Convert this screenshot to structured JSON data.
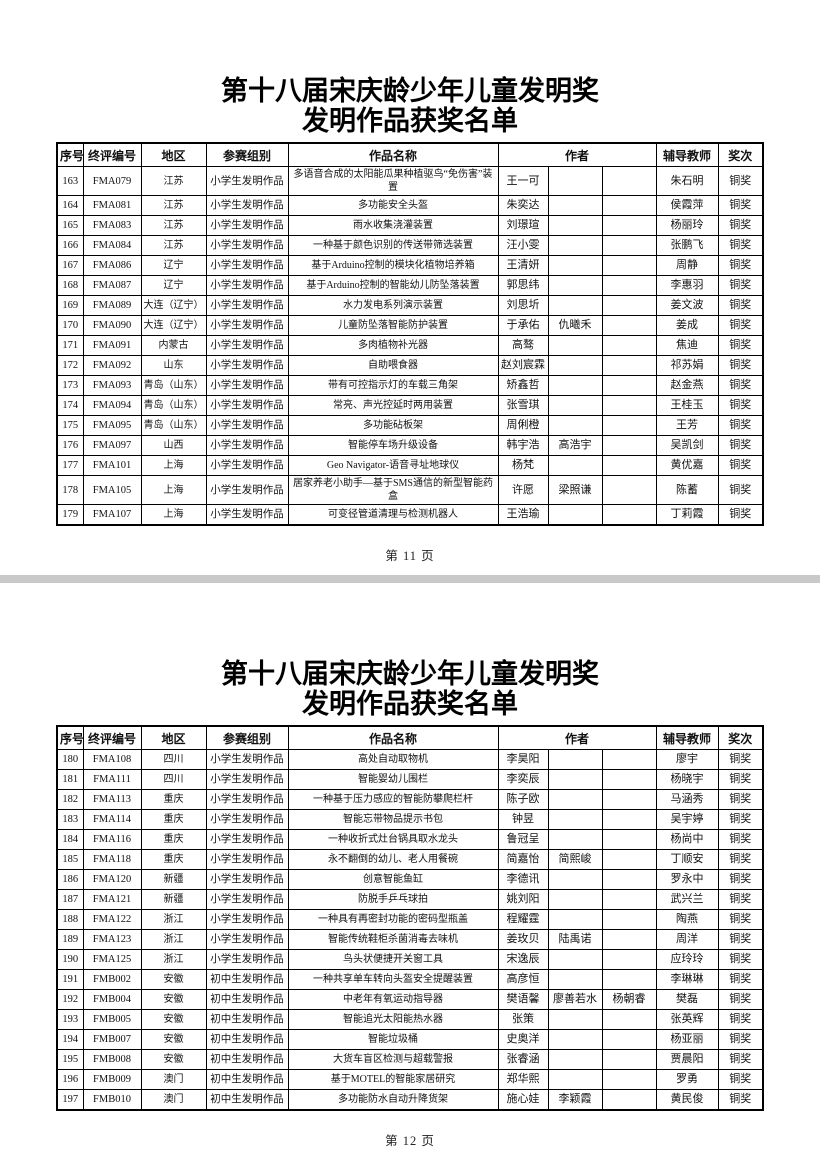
{
  "colors": {
    "page_bg": "#ffffff",
    "divider": "#c9c9c9",
    "border": "#000000",
    "text": "#111111"
  },
  "table": {
    "headers": [
      {
        "label": "序号",
        "colspan": 1
      },
      {
        "label": "终评编号",
        "colspan": 1
      },
      {
        "label": "地区",
        "colspan": 1
      },
      {
        "label": "参赛组别",
        "colspan": 1
      },
      {
        "label": "作品名称",
        "colspan": 1
      },
      {
        "label": "作者",
        "colspan": 3
      },
      {
        "label": "辅导教师",
        "colspan": 1
      },
      {
        "label": "奖次",
        "colspan": 1
      }
    ]
  },
  "pages": [
    {
      "title_line1": "第十八届宋庆龄少年儿童发明奖",
      "title_line2": "发明作品获奖名单",
      "footer": "第 11 页",
      "rows": [
        {
          "no": "163",
          "code": "FMA079",
          "region": "江苏",
          "group": "小学生发明作品",
          "work": "多语音合成的太阳能瓜果种植驱鸟“免伤害”装置",
          "authors": [
            "王一可",
            "",
            ""
          ],
          "teacher": "朱石明",
          "award": "铜奖"
        },
        {
          "no": "164",
          "code": "FMA081",
          "region": "江苏",
          "group": "小学生发明作品",
          "work": "多功能安全头盔",
          "authors": [
            "朱奕达",
            "",
            ""
          ],
          "teacher": "侯霞萍",
          "award": "铜奖"
        },
        {
          "no": "165",
          "code": "FMA083",
          "region": "江苏",
          "group": "小学生发明作品",
          "work": "雨水收集浇灌装置",
          "authors": [
            "刘璟瑄",
            "",
            ""
          ],
          "teacher": "杨丽玲",
          "award": "铜奖"
        },
        {
          "no": "166",
          "code": "FMA084",
          "region": "江苏",
          "group": "小学生发明作品",
          "work": "一种基于颜色识别的传送带筛选装置",
          "authors": [
            "汪小雯",
            "",
            ""
          ],
          "teacher": "张鹏飞",
          "award": "铜奖"
        },
        {
          "no": "167",
          "code": "FMA086",
          "region": "辽宁",
          "group": "小学生发明作品",
          "work": "基于Arduino控制的模块化植物培养箱",
          "authors": [
            "王清妍",
            "",
            ""
          ],
          "teacher": "周静",
          "award": "铜奖"
        },
        {
          "no": "168",
          "code": "FMA087",
          "region": "辽宁",
          "group": "小学生发明作品",
          "work": "基于Arduino控制的智能幼儿防坠落装置",
          "authors": [
            "郭思纬",
            "",
            ""
          ],
          "teacher": "李惠羽",
          "award": "铜奖"
        },
        {
          "no": "169",
          "code": "FMA089",
          "region": "大连（辽宁）",
          "group": "小学生发明作品",
          "work": "水力发电系列演示装置",
          "authors": [
            "刘思圻",
            "",
            ""
          ],
          "teacher": "姜文波",
          "award": "铜奖"
        },
        {
          "no": "170",
          "code": "FMA090",
          "region": "大连（辽宁）",
          "group": "小学生发明作品",
          "work": "儿童防坠落智能防护装置",
          "authors": [
            "于承佑",
            "仇曦禾",
            ""
          ],
          "teacher": "姜成",
          "award": "铜奖"
        },
        {
          "no": "171",
          "code": "FMA091",
          "region": "内蒙古",
          "group": "小学生发明作品",
          "work": "多肉植物补光器",
          "authors": [
            "高骜",
            "",
            ""
          ],
          "teacher": "焦迪",
          "award": "铜奖"
        },
        {
          "no": "172",
          "code": "FMA092",
          "region": "山东",
          "group": "小学生发明作品",
          "work": "自助喂食器",
          "authors": [
            "赵刘宸霖",
            "",
            ""
          ],
          "teacher": "祁苏娟",
          "award": "铜奖"
        },
        {
          "no": "173",
          "code": "FMA093",
          "region": "青岛（山东）",
          "group": "小学生发明作品",
          "work": "带有可控指示灯的车载三角架",
          "authors": [
            "矫鑫哲",
            "",
            ""
          ],
          "teacher": "赵金燕",
          "award": "铜奖"
        },
        {
          "no": "174",
          "code": "FMA094",
          "region": "青岛（山东）",
          "group": "小学生发明作品",
          "work": "常亮、声光控延时两用装置",
          "authors": [
            "张雪琪",
            "",
            ""
          ],
          "teacher": "王桂玉",
          "award": "铜奖"
        },
        {
          "no": "175",
          "code": "FMA095",
          "region": "青岛（山东）",
          "group": "小学生发明作品",
          "work": "多功能砧板架",
          "authors": [
            "周俐橙",
            "",
            ""
          ],
          "teacher": "王芳",
          "award": "铜奖"
        },
        {
          "no": "176",
          "code": "FMA097",
          "region": "山西",
          "group": "小学生发明作品",
          "work": "智能停车场升级设备",
          "authors": [
            "韩宇浩",
            "高浩宇",
            ""
          ],
          "teacher": "吴凯剑",
          "award": "铜奖"
        },
        {
          "no": "177",
          "code": "FMA101",
          "region": "上海",
          "group": "小学生发明作品",
          "work": "Geo Navigator-语音寻址地球仪",
          "authors": [
            "杨梵",
            "",
            ""
          ],
          "teacher": "黄优嘉",
          "award": "铜奖"
        },
        {
          "no": "178",
          "code": "FMA105",
          "region": "上海",
          "group": "小学生发明作品",
          "work": "居家养老小助手—基于SMS通信的新型智能药盒",
          "authors": [
            "许愿",
            "梁照谦",
            ""
          ],
          "teacher": "陈蓄",
          "award": "铜奖"
        },
        {
          "no": "179",
          "code": "FMA107",
          "region": "上海",
          "group": "小学生发明作品",
          "work": "可变径管道清理与检测机器人",
          "authors": [
            "王浩瑜",
            "",
            ""
          ],
          "teacher": "丁莉霞",
          "award": "铜奖"
        }
      ]
    },
    {
      "title_line1": "第十八届宋庆龄少年儿童发明奖",
      "title_line2": "发明作品获奖名单",
      "footer": "第 12 页",
      "rows": [
        {
          "no": "180",
          "code": "FMA108",
          "region": "四川",
          "group": "小学生发明作品",
          "work": "高处自动取物机",
          "authors": [
            "李昊阳",
            "",
            ""
          ],
          "teacher": "廖宇",
          "award": "铜奖"
        },
        {
          "no": "181",
          "code": "FMA111",
          "region": "四川",
          "group": "小学生发明作品",
          "work": "智能婴幼儿围栏",
          "authors": [
            "李奕辰",
            "",
            ""
          ],
          "teacher": "杨晓宇",
          "award": "铜奖"
        },
        {
          "no": "182",
          "code": "FMA113",
          "region": "重庆",
          "group": "小学生发明作品",
          "work": "一种基于压力感应的智能防攀爬栏杆",
          "authors": [
            "陈子欧",
            "",
            ""
          ],
          "teacher": "马涵秀",
          "award": "铜奖"
        },
        {
          "no": "183",
          "code": "FMA114",
          "region": "重庆",
          "group": "小学生发明作品",
          "work": "智能忘带物品提示书包",
          "authors": [
            "钟昱",
            "",
            ""
          ],
          "teacher": "吴宇婷",
          "award": "铜奖"
        },
        {
          "no": "184",
          "code": "FMA116",
          "region": "重庆",
          "group": "小学生发明作品",
          "work": "一种收折式灶台锅具取水龙头",
          "authors": [
            "鲁冠呈",
            "",
            ""
          ],
          "teacher": "杨尚中",
          "award": "铜奖"
        },
        {
          "no": "185",
          "code": "FMA118",
          "region": "重庆",
          "group": "小学生发明作品",
          "work": "永不翻倒的幼儿、老人用餐碗",
          "authors": [
            "简嘉怡",
            "简熙峻",
            ""
          ],
          "teacher": "丁顺安",
          "award": "铜奖"
        },
        {
          "no": "186",
          "code": "FMA120",
          "region": "新疆",
          "group": "小学生发明作品",
          "work": "创意智能鱼缸",
          "authors": [
            "李德讯",
            "",
            ""
          ],
          "teacher": "罗永中",
          "award": "铜奖"
        },
        {
          "no": "187",
          "code": "FMA121",
          "region": "新疆",
          "group": "小学生发明作品",
          "work": "防脱手乒乓球拍",
          "authors": [
            "姚刘阳",
            "",
            ""
          ],
          "teacher": "武兴兰",
          "award": "铜奖"
        },
        {
          "no": "188",
          "code": "FMA122",
          "region": "浙江",
          "group": "小学生发明作品",
          "work": "一种具有再密封功能的密码型瓶盖",
          "authors": [
            "程耀霆",
            "",
            ""
          ],
          "teacher": "陶燕",
          "award": "铜奖"
        },
        {
          "no": "189",
          "code": "FMA123",
          "region": "浙江",
          "group": "小学生发明作品",
          "work": "智能传统鞋柜杀菌消毒去味机",
          "authors": [
            "姜玫贝",
            "陆禹诺",
            ""
          ],
          "teacher": "周洋",
          "award": "铜奖"
        },
        {
          "no": "190",
          "code": "FMA125",
          "region": "浙江",
          "group": "小学生发明作品",
          "work": "鸟头状便捷开关窗工具",
          "authors": [
            "宋逸辰",
            "",
            ""
          ],
          "teacher": "应玲玲",
          "award": "铜奖"
        },
        {
          "no": "191",
          "code": "FMB002",
          "region": "安徽",
          "group": "初中生发明作品",
          "work": "一种共享单车转向头盔安全提醒装置",
          "authors": [
            "高彦恒",
            "",
            ""
          ],
          "teacher": "李琳琳",
          "award": "铜奖"
        },
        {
          "no": "192",
          "code": "FMB004",
          "region": "安徽",
          "group": "初中生发明作品",
          "work": "中老年有氧运动指导器",
          "authors": [
            "樊语馨",
            "廖善若水",
            "杨朝睿"
          ],
          "teacher": "樊磊",
          "award": "铜奖"
        },
        {
          "no": "193",
          "code": "FMB005",
          "region": "安徽",
          "group": "初中生发明作品",
          "work": "智能追光太阳能热水器",
          "authors": [
            "张策",
            "",
            ""
          ],
          "teacher": "张英辉",
          "award": "铜奖"
        },
        {
          "no": "194",
          "code": "FMB007",
          "region": "安徽",
          "group": "初中生发明作品",
          "work": "智能垃圾桶",
          "authors": [
            "史奥洋",
            "",
            ""
          ],
          "teacher": "杨亚丽",
          "award": "铜奖"
        },
        {
          "no": "195",
          "code": "FMB008",
          "region": "安徽",
          "group": "初中生发明作品",
          "work": "大货车盲区检测与超载警报",
          "authors": [
            "张睿涵",
            "",
            ""
          ],
          "teacher": "贾晨阳",
          "award": "铜奖"
        },
        {
          "no": "196",
          "code": "FMB009",
          "region": "澳门",
          "group": "初中生发明作品",
          "work": "基于MOTEL的智能家居研究",
          "authors": [
            "郑华熙",
            "",
            ""
          ],
          "teacher": "罗勇",
          "award": "铜奖"
        },
        {
          "no": "197",
          "code": "FMB010",
          "region": "澳门",
          "group": "初中生发明作品",
          "work": "多功能防水自动升降货架",
          "authors": [
            "施心娃",
            "李颖霞",
            ""
          ],
          "teacher": "黄民俊",
          "award": "铜奖"
        }
      ]
    }
  ]
}
